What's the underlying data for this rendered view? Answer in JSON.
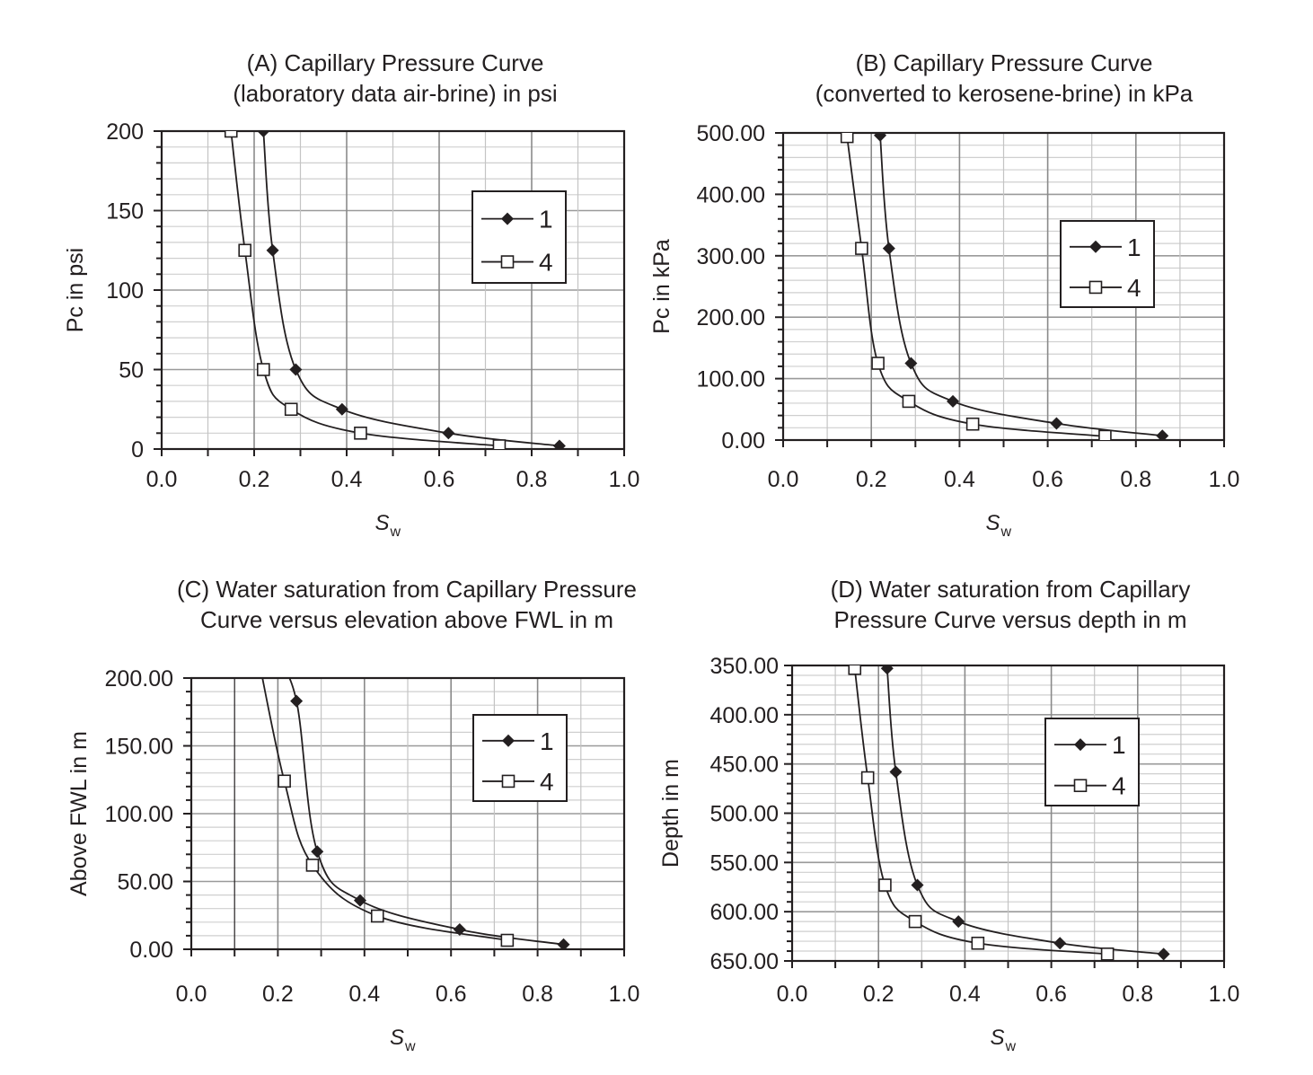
{
  "chart_data": [
    {
      "id": "A",
      "type": "line",
      "title": [
        "(A) Capillary Pressure Curve",
        "(laboratory data air-brine) in psi"
      ],
      "xlabel": {
        "main": "S",
        "sub": "w"
      },
      "ylabel": "Pc in psi",
      "xlim": [
        0,
        1
      ],
      "ylim": [
        0,
        200
      ],
      "y_inverted": false,
      "xticks": [
        0,
        0.2,
        0.4,
        0.6,
        0.8,
        1.0
      ],
      "xtick_labels": [
        "0.0",
        "0.2",
        "0.4",
        "0.6",
        "0.8",
        "1.0"
      ],
      "yticks": [
        0,
        50,
        100,
        150,
        200
      ],
      "ytick_labels": [
        "0",
        "50",
        "100",
        "150",
        "200"
      ],
      "y_minor_step": 10,
      "grid": true,
      "legend": {
        "placement": "top-right",
        "entries": [
          "1",
          "4"
        ]
      },
      "series": [
        {
          "name": "1",
          "marker": "filled-diamond",
          "x": [
            0.22,
            0.24,
            0.29,
            0.39,
            0.62,
            0.86
          ],
          "y": [
            200,
            125,
            50,
            25,
            10,
            2
          ]
        },
        {
          "name": "4",
          "marker": "open-square",
          "x": [
            0.15,
            0.18,
            0.22,
            0.28,
            0.43,
            0.73
          ],
          "y": [
            200,
            125,
            50,
            25,
            10,
            2
          ]
        }
      ]
    },
    {
      "id": "B",
      "type": "line",
      "title": [
        "(B) Capillary Pressure Curve",
        "(converted to kerosene-brine) in kPa"
      ],
      "xlabel": {
        "main": "S",
        "sub": "w"
      },
      "ylabel": "Pc in kPa",
      "xlim": [
        0,
        1
      ],
      "ylim": [
        0,
        500
      ],
      "y_inverted": false,
      "xticks": [
        0,
        0.2,
        0.4,
        0.6,
        0.8,
        1.0
      ],
      "xtick_labels": [
        "0.0",
        "0.2",
        "0.4",
        "0.6",
        "0.8",
        "1.0"
      ],
      "yticks": [
        0,
        100,
        200,
        300,
        400,
        500
      ],
      "ytick_labels": [
        "0.00",
        "100.00",
        "200.00",
        "300.00",
        "400.00",
        "500.00"
      ],
      "y_minor_step": 20,
      "grid": true,
      "legend": {
        "placement": "right",
        "entries": [
          "1",
          "4"
        ]
      },
      "series": [
        {
          "name": "1",
          "marker": "filled-diamond",
          "x": [
            0.22,
            0.24,
            0.29,
            0.385,
            0.62,
            0.86
          ],
          "y": [
            496,
            312,
            125,
            63,
            27,
            7
          ]
        },
        {
          "name": "4",
          "marker": "open-square",
          "x": [
            0.145,
            0.178,
            0.215,
            0.285,
            0.43,
            0.73
          ],
          "y": [
            494,
            312,
            125,
            63,
            26,
            6
          ]
        }
      ]
    },
    {
      "id": "C",
      "type": "line",
      "title": [
        "(C) Water saturation from Capillary Pressure",
        "Curve versus elevation above FWL in m"
      ],
      "xlabel": {
        "main": "S",
        "sub": "w"
      },
      "ylabel": "Above FWL in m",
      "xlim": [
        0,
        1
      ],
      "ylim": [
        0,
        200
      ],
      "y_inverted": false,
      "xticks": [
        0,
        0.2,
        0.4,
        0.6,
        0.8,
        1.0
      ],
      "xtick_labels": [
        "0.0",
        "0.2",
        "0.4",
        "0.6",
        "0.8",
        "1.0"
      ],
      "yticks": [
        0,
        50,
        100,
        150,
        200
      ],
      "ytick_labels": [
        "0.00",
        "50.00",
        "100.00",
        "150.00",
        "200.00"
      ],
      "y_minor_step": 10,
      "grid": true,
      "legend": {
        "placement": "top-right",
        "entries": [
          "1",
          "4"
        ]
      },
      "series": [
        {
          "name": "1",
          "marker": "filled-diamond",
          "x": [
            0.195,
            0.243,
            0.291,
            0.39,
            0.62,
            0.86
          ],
          "y": [
            215,
            183,
            72,
            36,
            14.6,
            3.5
          ]
        },
        {
          "name": "4",
          "marker": "open-square",
          "x": [
            0.155,
            0.215,
            0.28,
            0.43,
            0.73
          ],
          "y": [
            215,
            124,
            62,
            24.5,
            6.6
          ]
        }
      ]
    },
    {
      "id": "D",
      "type": "line",
      "title": [
        "(D) Water saturation from Capillary",
        "Pressure Curve versus depth in m"
      ],
      "xlabel": {
        "main": "S",
        "sub": "w"
      },
      "ylabel": "Depth in m",
      "xlim": [
        0,
        1
      ],
      "ylim": [
        350,
        650
      ],
      "y_inverted": true,
      "xticks": [
        0,
        0.2,
        0.4,
        0.6,
        0.8,
        1.0
      ],
      "xtick_labels": [
        "0.0",
        "0.2",
        "0.4",
        "0.6",
        "0.8",
        "1.0"
      ],
      "yticks": [
        350,
        400,
        450,
        500,
        550,
        600,
        650
      ],
      "ytick_labels": [
        "350.00",
        "400.00",
        "450.00",
        "500.00",
        "550.00",
        "600.00",
        "650.00"
      ],
      "y_minor_step": 10,
      "grid": true,
      "legend": {
        "placement": "top-right",
        "entries": [
          "1",
          "4"
        ]
      },
      "series": [
        {
          "name": "1",
          "marker": "filled-diamond",
          "x": [
            0.22,
            0.24,
            0.29,
            0.385,
            0.62,
            0.86
          ],
          "y": [
            353,
            458,
            573,
            610,
            632,
            643
          ]
        },
        {
          "name": "4",
          "marker": "open-square",
          "x": [
            0.145,
            0.175,
            0.215,
            0.285,
            0.43,
            0.73
          ],
          "y": [
            353,
            464,
            573,
            610,
            632,
            643
          ]
        }
      ]
    }
  ]
}
